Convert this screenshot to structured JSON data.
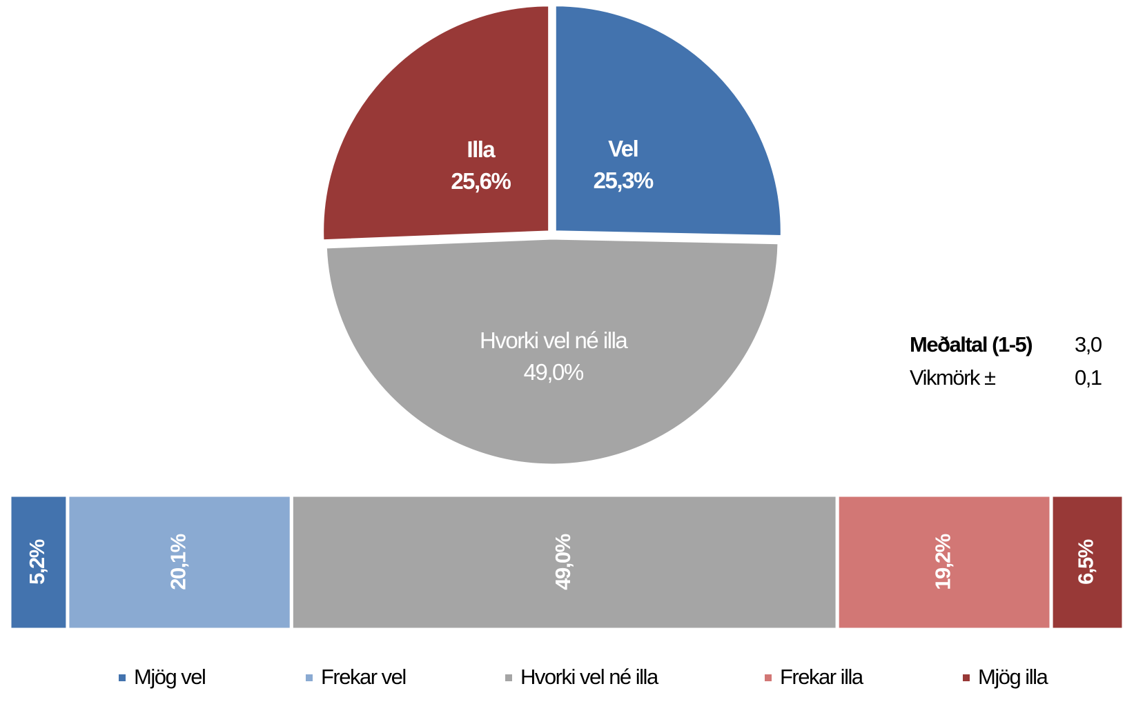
{
  "chart_data": [
    {
      "type": "pie",
      "categories": [
        "Vel",
        "Hvorki vel né illa",
        "Illa"
      ],
      "values": [
        25.3,
        49.0,
        25.6
      ],
      "value_labels": [
        "25,3%",
        "49,0%",
        "25,6%"
      ],
      "colors": [
        "#4373ae",
        "#a5a5a5",
        "#983937"
      ],
      "annotations": [
        {
          "label": "Meðaltal (1-5)",
          "value": {
            "value": 3,
            "label": "3,0"
          }
        },
        {
          "label": "Vikmörk ±",
          "value": {
            "value": 0.1,
            "label": "0,1"
          }
        }
      ]
    },
    {
      "type": "stacked_bar",
      "xlim": [
        0,
        100
      ],
      "series": [
        {
          "name": "Mjög vel",
          "color": "#4373ae",
          "values": [
            5.2
          ],
          "value_labels": [
            "5,2%"
          ]
        },
        {
          "name": "Frekar vel",
          "color": "#8aaad2",
          "values": [
            20.1
          ],
          "value_labels": [
            "20,1%"
          ]
        },
        {
          "name": "Hvorki vel né illa",
          "color": "#a5a5a5",
          "values": [
            49.0
          ],
          "value_labels": [
            "49,0%"
          ]
        },
        {
          "name": "Frekar illa",
          "color": "#d27775",
          "values": [
            19.2
          ],
          "value_labels": [
            "19,2%"
          ]
        },
        {
          "name": "Mjög illa",
          "color": "#983937",
          "values": [
            6.5
          ],
          "value_labels": [
            "6,5%"
          ]
        }
      ],
      "legend": "bottom"
    }
  ]
}
